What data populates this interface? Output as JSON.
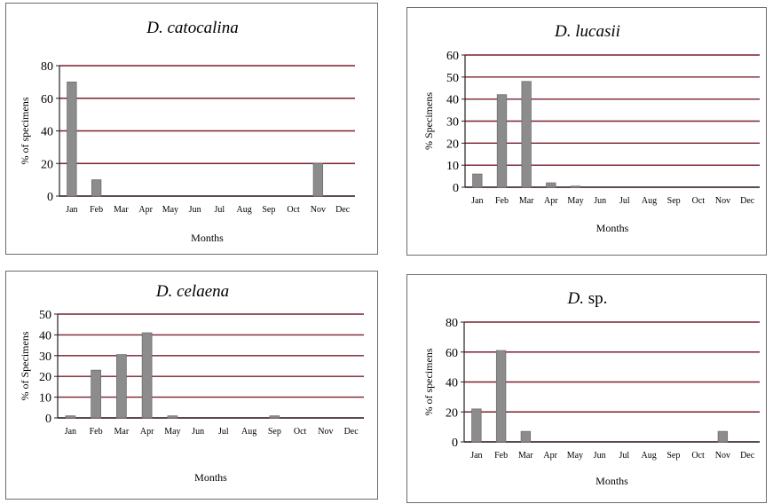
{
  "chart_data": [
    {
      "type": "bar",
      "title": "D. catocalina",
      "title_suffix": "",
      "xlabel": "Months",
      "ylabel": "% of specimens",
      "ylim": [
        0,
        80
      ],
      "yticks": [
        0,
        20,
        40,
        60,
        80
      ],
      "categories": [
        "Jan",
        "Feb",
        "Mar",
        "Apr",
        "May",
        "Jun",
        "Jul",
        "Aug",
        "Sep",
        "Oct",
        "Nov",
        "Dec"
      ],
      "values": [
        70,
        10,
        0,
        0,
        0,
        0,
        0,
        0,
        0,
        0,
        20,
        0
      ],
      "grid": true,
      "bar_color": "#8c8c8c",
      "grid_color": "#7a1f2e"
    },
    {
      "type": "bar",
      "title": "D. lucasii",
      "title_suffix": "",
      "xlabel": "Months",
      "ylabel": "% Specimens",
      "ylim": [
        0,
        60
      ],
      "yticks": [
        0,
        10,
        20,
        30,
        40,
        50,
        60
      ],
      "categories": [
        "Jan",
        "Feb",
        "Mar",
        "Apr",
        "May",
        "Jun",
        "Jul",
        "Aug",
        "Sep",
        "Oct",
        "Nov",
        "Dec"
      ],
      "values": [
        6,
        42,
        48,
        2,
        0.5,
        0,
        0,
        0,
        0,
        0,
        0,
        0
      ],
      "grid": true,
      "bar_color": "#8c8c8c",
      "grid_color": "#7a1f2e"
    },
    {
      "type": "bar",
      "title": "D. celaena",
      "title_suffix": "",
      "xlabel": "Months",
      "ylabel": "% of Specimens",
      "ylim": [
        0,
        50
      ],
      "yticks": [
        0,
        10,
        20,
        30,
        40,
        50
      ],
      "categories": [
        "Jan",
        "Feb",
        "Mar",
        "Apr",
        "May",
        "Jun",
        "Jul",
        "Aug",
        "Sep",
        "Oct",
        "Nov",
        "Dec"
      ],
      "values": [
        1,
        23,
        30.5,
        41,
        1,
        0,
        0,
        0,
        1,
        0,
        0,
        0
      ],
      "grid": true,
      "bar_color": "#8c8c8c",
      "grid_color": "#7a1f2e"
    },
    {
      "type": "bar",
      "title": "D.",
      "title_suffix": " sp.",
      "xlabel": "Months",
      "ylabel": "% of specimens",
      "ylim": [
        0,
        80
      ],
      "yticks": [
        0,
        20,
        40,
        60,
        80
      ],
      "categories": [
        "Jan",
        "Feb",
        "Mar",
        "Apr",
        "May",
        "Jun",
        "Jul",
        "Aug",
        "Sep",
        "Oct",
        "Nov",
        "Dec"
      ],
      "values": [
        22,
        61,
        7,
        0,
        0,
        0,
        0,
        0,
        0,
        0,
        7,
        0
      ],
      "grid": true,
      "bar_color": "#8c8c8c",
      "grid_color": "#7a1f2e"
    }
  ]
}
